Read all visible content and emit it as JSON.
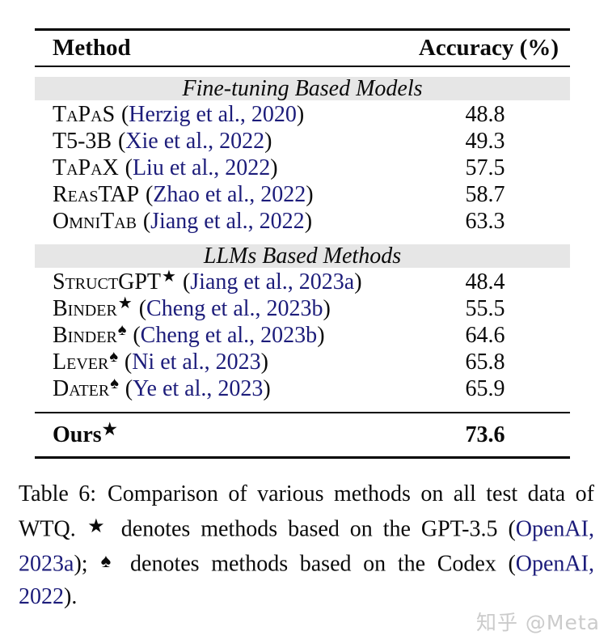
{
  "theme": {
    "page_bg": "#ffffff",
    "text_color": "#0a0a0a",
    "link_color": "#1c1c7a",
    "band_color": "#e6e6e6",
    "rule_color": "#000000",
    "watermark_color": "#cbcbcb"
  },
  "table": {
    "header": {
      "method": "Method",
      "accuracy": "Accuracy (%)"
    },
    "cite_open": "(",
    "cite_close": ")",
    "sections": [
      {
        "title": "Fine-tuning Based Models",
        "rows": [
          {
            "method": "TaPaS",
            "marker": "",
            "citation": "Herzig et al., 2020",
            "accuracy": "48.8"
          },
          {
            "method": "T5-3B",
            "marker": "",
            "citation": "Xie et al., 2022",
            "accuracy": "49.3"
          },
          {
            "method": "TaPaX",
            "marker": "",
            "citation": "Liu et al., 2022",
            "accuracy": "57.5"
          },
          {
            "method": "ReasTAP",
            "marker": "",
            "citation": "Zhao et al., 2022",
            "accuracy": "58.7"
          },
          {
            "method": "OmniTab",
            "marker": "",
            "citation": "Jiang et al., 2022",
            "accuracy": "63.3"
          }
        ]
      },
      {
        "title": "LLMs Based Methods",
        "rows": [
          {
            "method": "StructGPT",
            "marker": "★",
            "citation": "Jiang et al., 2023a",
            "accuracy": "48.4"
          },
          {
            "method": "Binder",
            "marker": "★",
            "citation": "Cheng et al., 2023b",
            "accuracy": "55.5"
          },
          {
            "method": "Binder",
            "marker": "♠",
            "citation": "Cheng et al., 2023b",
            "accuracy": "64.6"
          },
          {
            "method": "Lever",
            "marker": "♠",
            "citation": "Ni et al., 2023",
            "accuracy": "65.8"
          },
          {
            "method": "Dater",
            "marker": "♠",
            "citation": "Ye et al., 2023",
            "accuracy": "65.9"
          }
        ]
      }
    ],
    "footer_row": {
      "method": "Ours",
      "marker": "★",
      "accuracy": "73.6"
    }
  },
  "caption": {
    "label": "Table 6:",
    "s1": "Comparison of various methods on all test data of WTQ. ",
    "star": "★",
    "s2": " denotes methods based on the GPT-3.5 (",
    "link_gpt": "OpenAI, 2023a",
    "s3": "); ",
    "spade": "♠",
    "s4": " denotes methods based on the Codex (",
    "link_codex": "OpenAI, 2022",
    "s5": ")."
  },
  "watermark": {
    "text": "知乎 @Meta"
  }
}
